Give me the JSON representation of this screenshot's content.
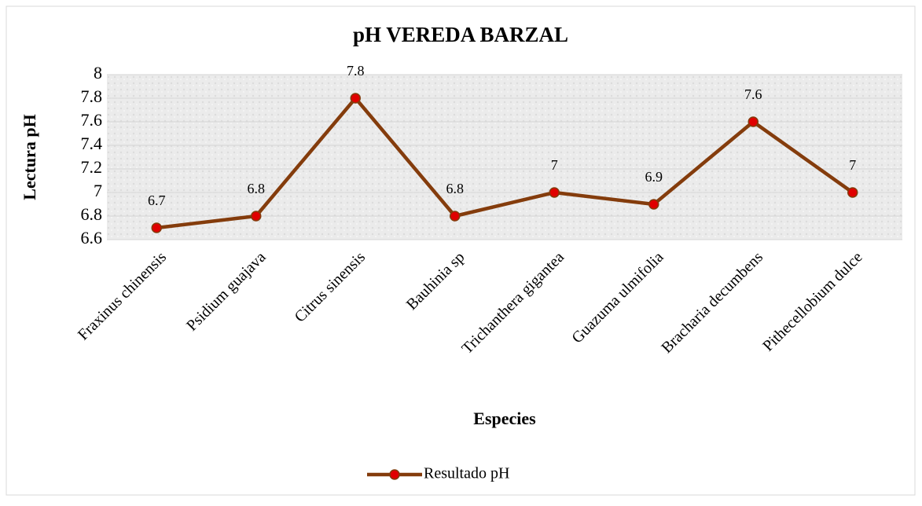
{
  "chart_data": {
    "type": "line",
    "title": "pH VEREDA BARZAL",
    "x_label": "Especies",
    "y_label": "Lectura pH",
    "categories": [
      "Fraxinus chinensis",
      "Psidium guajava",
      "Citrus sinensis",
      "Bauhinia sp",
      "Trichanthera gigantea",
      "Guazuma ulmifolia",
      "Bracharia decumbens",
      "Pithecellobium dulce"
    ],
    "series": [
      {
        "name": "Resultado pH",
        "color": "#843c0c",
        "marker_color": "#e00000",
        "values": [
          6.7,
          6.8,
          7.8,
          6.8,
          7,
          6.9,
          7.6,
          7
        ]
      }
    ],
    "ylim": [
      6.6,
      8
    ],
    "yticks": [
      6.6,
      6.8,
      7,
      7.2,
      7.4,
      7.6,
      7.8,
      8
    ],
    "grid": true,
    "legend": "bottom"
  }
}
